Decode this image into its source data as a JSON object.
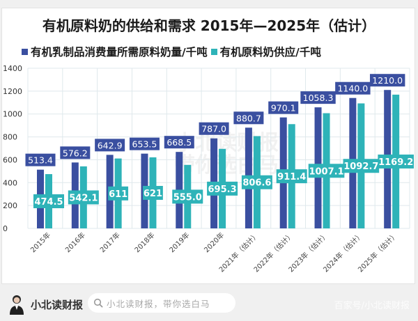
{
  "chart_data": {
    "type": "bar",
    "title": "有机原料奶的供给和需求 2015年—2025年（估计）",
    "xlabel": "",
    "ylabel": "",
    "ylim": [
      0,
      1400
    ],
    "yticks": [
      0,
      200,
      400,
      600,
      800,
      1000,
      1200,
      1400
    ],
    "grid": true,
    "legend_position": "top-left",
    "categories": [
      "2015年",
      "2016年",
      "2017年",
      "2018年",
      "2019年",
      "2020年",
      "2021年（估计）",
      "2022年（估计）",
      "2023年（估计）",
      "2024年（估计）",
      "2025年（估计）"
    ],
    "series": [
      {
        "name": "有机乳制品消费量所需原料奶量/千吨",
        "color": "#3a4fa0",
        "values": [
          513.4,
          576.2,
          642.9,
          653.5,
          668.5,
          787.0,
          880.7,
          970.1,
          1058.3,
          1140.0,
          1210.0
        ],
        "labels": [
          "513.4",
          "576.2",
          "642.9",
          "653.5",
          "668.5",
          "787.0",
          "880.7",
          "970.1",
          "1058.3",
          "1140.0",
          "1210.0"
        ]
      },
      {
        "name": "有机原料奶供应/千吨",
        "color": "#2eb3b8",
        "values": [
          474.5,
          542.1,
          611,
          621,
          555.0,
          695.3,
          806.6,
          911.4,
          1007.1,
          1092.7,
          1169.2
        ],
        "labels": [
          "474.5",
          "542.1",
          "611",
          "621",
          "555.0",
          "695.3",
          "806.6",
          "911.4",
          "1007.1",
          "1092.7",
          "1169.2"
        ]
      }
    ]
  },
  "watermark": {
    "center_line1": "小北读财报",
    "center_line2": "带你选白马"
  },
  "footer": {
    "brand": "小北读财报",
    "search_placeholder": "小北读财报，带你选白马",
    "search_icon": "search-icon",
    "avatar_icon": "avatar-icon",
    "corner_watermark": "百家号/小北读财报"
  }
}
